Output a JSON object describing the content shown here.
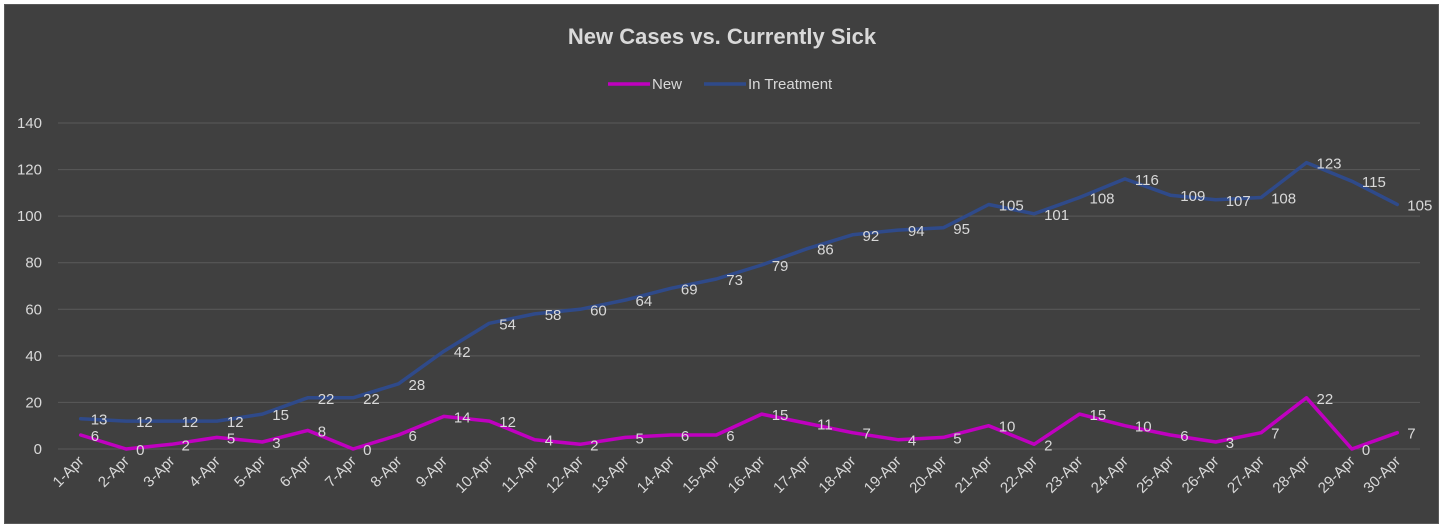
{
  "chart_data": {
    "type": "line",
    "title": "New Cases vs. Currently Sick",
    "xlabel": "",
    "ylabel": "",
    "ylim": [
      0,
      140
    ],
    "yticks": [
      0,
      20,
      40,
      60,
      80,
      100,
      120,
      140
    ],
    "grid": true,
    "legend_position": "top",
    "categories": [
      "1-Apr",
      "2-Apr",
      "3-Apr",
      "4-Apr",
      "5-Apr",
      "6-Apr",
      "7-Apr",
      "8-Apr",
      "9-Apr",
      "10-Apr",
      "11-Apr",
      "12-Apr",
      "13-Apr",
      "14-Apr",
      "15-Apr",
      "16-Apr",
      "17-Apr",
      "18-Apr",
      "19-Apr",
      "20-Apr",
      "21-Apr",
      "22-Apr",
      "23-Apr",
      "24-Apr",
      "25-Apr",
      "26-Apr",
      "27-Apr",
      "28-Apr",
      "29-Apr",
      "30-Apr"
    ],
    "series": [
      {
        "name": "New",
        "color": "#c000c0",
        "values": [
          6,
          0,
          2,
          5,
          3,
          8,
          0,
          6,
          14,
          12,
          4,
          2,
          5,
          6,
          6,
          15,
          11,
          7,
          4,
          5,
          10,
          2,
          15,
          10,
          6,
          3,
          7,
          22,
          0,
          7
        ]
      },
      {
        "name": "In Treatment",
        "color": "#2f4a8a",
        "values": [
          13,
          12,
          12,
          12,
          15,
          22,
          22,
          28,
          42,
          54,
          58,
          60,
          64,
          69,
          73,
          79,
          86,
          92,
          94,
          95,
          105,
          101,
          108,
          116,
          109,
          107,
          108,
          123,
          115,
          105
        ]
      }
    ]
  }
}
